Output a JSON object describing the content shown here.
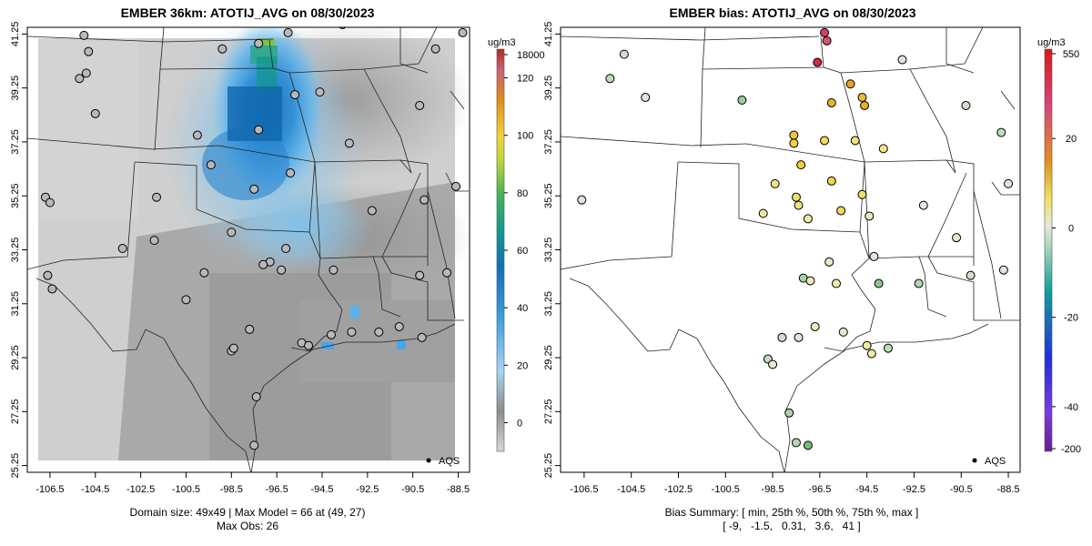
{
  "chart_data": [
    {
      "type": "heatmap",
      "title": "EMBER 36km: ATOTIJ_AVG on 08/30/2023",
      "x_ticks": [
        "-106.5",
        "-104.5",
        "-102.5",
        "-100.5",
        "-98.5",
        "-96.5",
        "-94.5",
        "-92.5",
        "-90.5",
        "-88.5"
      ],
      "y_ticks": [
        "25.25",
        "27.25",
        "29.25",
        "31.25",
        "33.25",
        "35.25",
        "37.25",
        "39.25",
        "41.25"
      ],
      "xlim": [
        -107.5,
        -88.0
      ],
      "ylim": [
        25.0,
        41.5
      ],
      "colorbar": {
        "unit": "ug/m3",
        "labels": [
          "18000",
          "120",
          "100",
          "80",
          "60",
          "40",
          "20",
          "0"
        ],
        "label_values": [
          18000,
          120,
          100,
          80,
          60,
          40,
          20,
          0
        ]
      },
      "legend": "AQS",
      "captions": [
        "Domain size: 49x49 | Max Model = 66 at (49, 27)",
        "Max Obs: 26"
      ],
      "model_peak": {
        "lon": -96.5,
        "lat": 40.7,
        "value": 66
      },
      "plume_highs": [
        {
          "lon": -96.5,
          "lat": 38.8,
          "value": 45
        },
        {
          "lon": -95.0,
          "lat": 38.2,
          "value": 32
        },
        {
          "lon": -94.6,
          "lat": 29.6,
          "value": 28
        },
        {
          "lon": -91.0,
          "lat": 29.6,
          "value": 26
        }
      ],
      "obs_sites": [
        {
          "lon": -105.0,
          "lat": 41.2
        },
        {
          "lon": -104.8,
          "lat": 40.6
        },
        {
          "lon": -104.9,
          "lat": 39.8
        },
        {
          "lon": -105.2,
          "lat": 39.6
        },
        {
          "lon": -106.7,
          "lat": 35.2
        },
        {
          "lon": -106.5,
          "lat": 35.0
        },
        {
          "lon": -106.4,
          "lat": 31.8
        },
        {
          "lon": -106.6,
          "lat": 32.3
        },
        {
          "lon": -103.3,
          "lat": 33.3
        },
        {
          "lon": -101.8,
          "lat": 35.2
        },
        {
          "lon": -100.5,
          "lat": 31.4
        },
        {
          "lon": -98.5,
          "lat": 29.5
        },
        {
          "lon": -98.4,
          "lat": 29.6
        },
        {
          "lon": -97.4,
          "lat": 27.8
        },
        {
          "lon": -97.5,
          "lat": 26.0
        },
        {
          "lon": -97.7,
          "lat": 30.3
        },
        {
          "lon": -96.8,
          "lat": 32.8
        },
        {
          "lon": -97.1,
          "lat": 32.7
        },
        {
          "lon": -96.3,
          "lat": 32.5
        },
        {
          "lon": -95.4,
          "lat": 29.8
        },
        {
          "lon": -95.1,
          "lat": 29.7
        },
        {
          "lon": -94.1,
          "lat": 30.1
        },
        {
          "lon": -93.2,
          "lat": 30.2
        },
        {
          "lon": -92.0,
          "lat": 30.2
        },
        {
          "lon": -91.1,
          "lat": 30.4
        },
        {
          "lon": -90.1,
          "lat": 30.0
        },
        {
          "lon": -97.5,
          "lat": 35.5
        },
        {
          "lon": -95.9,
          "lat": 36.1
        },
        {
          "lon": -97.3,
          "lat": 37.7
        },
        {
          "lon": -95.7,
          "lat": 39.0
        },
        {
          "lon": -94.6,
          "lat": 39.1
        },
        {
          "lon": -96.0,
          "lat": 41.3
        },
        {
          "lon": -93.6,
          "lat": 41.6
        },
        {
          "lon": -92.3,
          "lat": 34.7
        },
        {
          "lon": -90.2,
          "lat": 38.6
        },
        {
          "lon": -90.0,
          "lat": 35.1
        },
        {
          "lon": -93.3,
          "lat": 37.2
        },
        {
          "lon": -89.5,
          "lat": 40.7
        },
        {
          "lon": -88.3,
          "lat": 41.3
        },
        {
          "lon": -89.0,
          "lat": 32.4
        },
        {
          "lon": -90.2,
          "lat": 32.3
        },
        {
          "lon": -88.6,
          "lat": 35.6
        },
        {
          "lon": -94.0,
          "lat": 32.5
        },
        {
          "lon": -96.1,
          "lat": 33.3
        },
        {
          "lon": -99.7,
          "lat": 32.4
        },
        {
          "lon": -101.9,
          "lat": 33.6
        },
        {
          "lon": -98.5,
          "lat": 33.9
        },
        {
          "lon": -104.5,
          "lat": 38.3
        },
        {
          "lon": -98.9,
          "lat": 40.7
        },
        {
          "lon": -97.3,
          "lat": 40.9
        },
        {
          "lon": -99.4,
          "lat": 36.4
        },
        {
          "lon": -100.0,
          "lat": 37.5
        }
      ]
    },
    {
      "type": "scatter",
      "title": "EMBER bias: ATOTIJ_AVG on 08/30/2023",
      "x_ticks": [
        "-106.5",
        "-104.5",
        "-102.5",
        "-100.5",
        "-98.5",
        "-96.5",
        "-94.5",
        "-92.5",
        "-90.5",
        "-88.5"
      ],
      "y_ticks": [
        "25.25",
        "27.25",
        "29.25",
        "31.25",
        "33.25",
        "35.25",
        "37.25",
        "39.25",
        "41.25"
      ],
      "xlim": [
        -107.5,
        -88.0
      ],
      "ylim": [
        25.0,
        41.5
      ],
      "colorbar": {
        "unit": "ug/m3",
        "labels": [
          "550",
          "20",
          "0",
          "-20",
          "-40",
          "-200"
        ],
        "label_values": [
          550,
          20,
          0,
          -20,
          -40,
          -200
        ]
      },
      "legend": "AQS",
      "captions": [
        "Bias Summary: [ min, 25th %, 50th %, 75th %, max ]",
        "[ -9,   -1.5,   0.31,   3.6,   41 ]"
      ],
      "summary": {
        "min": -9,
        "p25": -1.5,
        "p50": 0.31,
        "p75": 3.6,
        "max": 41
      },
      "points": [
        {
          "lon": -96.3,
          "lat": 41.3,
          "bias": 35
        },
        {
          "lon": -96.2,
          "lat": 41.0,
          "bias": 30
        },
        {
          "lon": -96.6,
          "lat": 40.2,
          "bias": 41
        },
        {
          "lon": -95.2,
          "lat": 39.4,
          "bias": 18
        },
        {
          "lon": -94.7,
          "lat": 38.9,
          "bias": 14
        },
        {
          "lon": -94.6,
          "lat": 38.6,
          "bias": 16
        },
        {
          "lon": -96.0,
          "lat": 38.7,
          "bias": 15
        },
        {
          "lon": -97.6,
          "lat": 37.5,
          "bias": 12
        },
        {
          "lon": -97.6,
          "lat": 37.2,
          "bias": 10
        },
        {
          "lon": -96.3,
          "lat": 37.3,
          "bias": 8
        },
        {
          "lon": -95.0,
          "lat": 37.3,
          "bias": 6
        },
        {
          "lon": -93.8,
          "lat": 37.0,
          "bias": 5
        },
        {
          "lon": -97.3,
          "lat": 36.4,
          "bias": 11
        },
        {
          "lon": -96.0,
          "lat": 35.8,
          "bias": 9
        },
        {
          "lon": -98.4,
          "lat": 35.7,
          "bias": 5
        },
        {
          "lon": -97.5,
          "lat": 35.2,
          "bias": 7
        },
        {
          "lon": -97.4,
          "lat": 34.9,
          "bias": 6
        },
        {
          "lon": -95.6,
          "lat": 34.7,
          "bias": 8
        },
        {
          "lon": -94.7,
          "lat": 35.3,
          "bias": 7
        },
        {
          "lon": -98.9,
          "lat": 34.6,
          "bias": 4
        },
        {
          "lon": -97.0,
          "lat": 34.4,
          "bias": 3
        },
        {
          "lon": -94.4,
          "lat": 34.5,
          "bias": 2
        },
        {
          "lon": -96.1,
          "lat": 32.8,
          "bias": 1
        },
        {
          "lon": -97.2,
          "lat": 32.2,
          "bias": -4
        },
        {
          "lon": -96.9,
          "lat": 32.1,
          "bias": 2
        },
        {
          "lon": -95.8,
          "lat": 32.0,
          "bias": 3
        },
        {
          "lon": -94.0,
          "lat": 32.0,
          "bias": -6
        },
        {
          "lon": -92.3,
          "lat": 32.0,
          "bias": -3
        },
        {
          "lon": -90.1,
          "lat": 32.3,
          "bias": -1
        },
        {
          "lon": -88.7,
          "lat": 32.5,
          "bias": 0
        },
        {
          "lon": -96.7,
          "lat": 30.4,
          "bias": 2
        },
        {
          "lon": -95.5,
          "lat": 30.2,
          "bias": 1
        },
        {
          "lon": -94.5,
          "lat": 29.7,
          "bias": 4
        },
        {
          "lon": -94.3,
          "lat": 29.4,
          "bias": 3
        },
        {
          "lon": -93.6,
          "lat": 29.6,
          "bias": -2
        },
        {
          "lon": -98.7,
          "lat": 29.2,
          "bias": -2
        },
        {
          "lon": -98.5,
          "lat": 29.0,
          "bias": 1
        },
        {
          "lon": -98.1,
          "lat": 30.0,
          "bias": -1
        },
        {
          "lon": -97.4,
          "lat": 30.0,
          "bias": 0
        },
        {
          "lon": -97.8,
          "lat": 27.2,
          "bias": -4
        },
        {
          "lon": -97.5,
          "lat": 26.1,
          "bias": -3
        },
        {
          "lon": -97.0,
          "lat": 26.0,
          "bias": -9
        },
        {
          "lon": -105.4,
          "lat": 39.6,
          "bias": -2
        },
        {
          "lon": -104.8,
          "lat": 40.5,
          "bias": -1
        },
        {
          "lon": -103.9,
          "lat": 38.9,
          "bias": 0
        },
        {
          "lon": -106.6,
          "lat": 35.1,
          "bias": 0
        },
        {
          "lon": -99.8,
          "lat": 38.8,
          "bias": -5
        },
        {
          "lon": -93.0,
          "lat": 40.3,
          "bias": 0
        },
        {
          "lon": -90.3,
          "lat": 38.6,
          "bias": -1
        },
        {
          "lon": -88.8,
          "lat": 37.6,
          "bias": -2
        },
        {
          "lon": -88.5,
          "lat": 35.7,
          "bias": 0
        },
        {
          "lon": -92.1,
          "lat": 34.9,
          "bias": 0
        },
        {
          "lon": -90.7,
          "lat": 33.7,
          "bias": 1
        },
        {
          "lon": -94.2,
          "lat": 33.0,
          "bias": 0
        }
      ]
    }
  ]
}
